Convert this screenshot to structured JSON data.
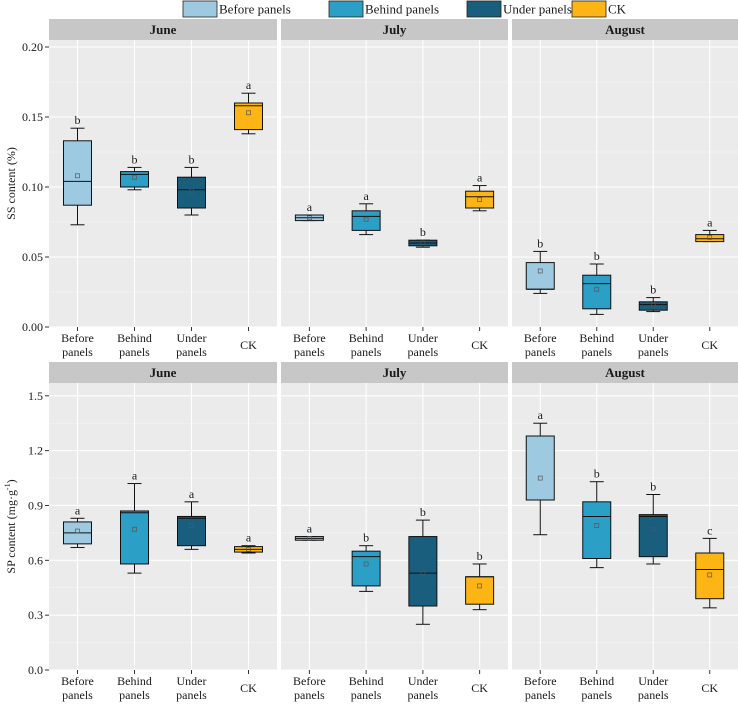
{
  "chart_data": {
    "type": "boxplot",
    "legend": {
      "placement": "top",
      "entries": [
        {
          "label": "Before panels",
          "color": "#9ecae1"
        },
        {
          "label": "Behind panels",
          "color": "#2b9fc5"
        },
        {
          "label": "Under panels",
          "color": "#1a5e7e"
        },
        {
          "label": "CK",
          "color": "#fdb515"
        }
      ]
    },
    "categories": [
      "Before\npanels",
      "Behind\npanels",
      "Under\npanels",
      "CK"
    ],
    "colors": [
      "#9ecae1",
      "#2b9fc5",
      "#1a5e7e",
      "#fdb515"
    ],
    "panel_bg": "#ebebeb",
    "strip_bg": "#c7c7c7",
    "rows": [
      {
        "ylabel": "SS content (%)",
        "ylim": [
          0,
          0.205
        ],
        "yticks": [
          0.0,
          0.05,
          0.1,
          0.15,
          0.2
        ],
        "ytick_labels": [
          "0.00",
          "0.05",
          "0.10",
          "0.15",
          "0.20"
        ],
        "panels": [
          {
            "title": "June",
            "boxes": [
              {
                "min": 0.073,
                "q1": 0.087,
                "median": 0.104,
                "q3": 0.133,
                "max": 0.142,
                "mean": 0.108,
                "label": "b"
              },
              {
                "min": 0.098,
                "q1": 0.1,
                "median": 0.109,
                "q3": 0.111,
                "max": 0.114,
                "mean": 0.107,
                "label": "b"
              },
              {
                "min": 0.08,
                "q1": 0.085,
                "median": 0.098,
                "q3": 0.107,
                "max": 0.114,
                "mean": 0.097,
                "label": "b"
              },
              {
                "min": 0.138,
                "q1": 0.141,
                "median": 0.158,
                "q3": 0.16,
                "max": 0.167,
                "mean": 0.153,
                "label": "a"
              }
            ]
          },
          {
            "title": "July",
            "boxes": [
              {
                "min": 0.076,
                "q1": 0.076,
                "median": 0.078,
                "q3": 0.08,
                "max": 0.08,
                "mean": 0.078,
                "label": "a"
              },
              {
                "min": 0.066,
                "q1": 0.069,
                "median": 0.079,
                "q3": 0.083,
                "max": 0.088,
                "mean": 0.077,
                "label": "a"
              },
              {
                "min": 0.057,
                "q1": 0.058,
                "median": 0.06,
                "q3": 0.062,
                "max": 0.062,
                "mean": 0.06,
                "label": "b"
              },
              {
                "min": 0.083,
                "q1": 0.085,
                "median": 0.093,
                "q3": 0.097,
                "max": 0.101,
                "mean": 0.091,
                "label": "a"
              }
            ]
          },
          {
            "title": "August",
            "boxes": [
              {
                "min": 0.024,
                "q1": 0.027,
                "median": 0.027,
                "q3": 0.046,
                "max": 0.054,
                "mean": 0.04,
                "label": "b"
              },
              {
                "min": 0.009,
                "q1": 0.013,
                "median": 0.031,
                "q3": 0.037,
                "max": 0.045,
                "mean": 0.027,
                "label": "b"
              },
              {
                "min": 0.011,
                "q1": 0.012,
                "median": 0.016,
                "q3": 0.018,
                "max": 0.021,
                "mean": 0.016,
                "label": "b"
              },
              {
                "min": 0.061,
                "q1": 0.061,
                "median": 0.063,
                "q3": 0.066,
                "max": 0.069,
                "mean": 0.064,
                "label": "a"
              }
            ]
          }
        ]
      },
      {
        "ylabel": "SP content (mg·g",
        "ylabel_sup": "-1",
        "ylabel_close": ")",
        "ylim": [
          0,
          1.57
        ],
        "yticks": [
          0.0,
          0.3,
          0.6,
          0.9,
          1.2,
          1.5
        ],
        "ytick_labels": [
          "0.0",
          "0.3",
          "0.6",
          "0.9",
          "1.2",
          "1.5"
        ],
        "panels": [
          {
            "title": "June",
            "boxes": [
              {
                "min": 0.67,
                "q1": 0.69,
                "median": 0.75,
                "q3": 0.81,
                "max": 0.83,
                "mean": 0.76,
                "label": "a"
              },
              {
                "min": 0.53,
                "q1": 0.58,
                "median": 0.86,
                "q3": 0.87,
                "max": 1.02,
                "mean": 0.77,
                "label": "a"
              },
              {
                "min": 0.66,
                "q1": 0.68,
                "median": 0.83,
                "q3": 0.84,
                "max": 0.92,
                "mean": 0.79,
                "label": "a"
              },
              {
                "min": 0.64,
                "q1": 0.645,
                "median": 0.66,
                "q3": 0.675,
                "max": 0.68,
                "mean": 0.66,
                "label": "a"
              }
            ]
          },
          {
            "title": "July",
            "boxes": [
              {
                "min": 0.71,
                "q1": 0.71,
                "median": 0.72,
                "q3": 0.73,
                "max": 0.73,
                "mean": 0.72,
                "label": "a"
              },
              {
                "min": 0.43,
                "q1": 0.46,
                "median": 0.62,
                "q3": 0.65,
                "max": 0.68,
                "mean": 0.58,
                "label": "b"
              },
              {
                "min": 0.25,
                "q1": 0.35,
                "median": 0.53,
                "q3": 0.73,
                "max": 0.82,
                "mean": 0.53,
                "label": "b"
              },
              {
                "min": 0.33,
                "q1": 0.36,
                "median": 0.51,
                "q3": 0.51,
                "max": 0.58,
                "mean": 0.46,
                "label": "b"
              }
            ]
          },
          {
            "title": "August",
            "boxes": [
              {
                "min": 0.74,
                "q1": 0.93,
                "median": 0.93,
                "q3": 1.28,
                "max": 1.35,
                "mean": 1.05,
                "label": "a"
              },
              {
                "min": 0.56,
                "q1": 0.61,
                "median": 0.84,
                "q3": 0.92,
                "max": 1.03,
                "mean": 0.79,
                "label": "b"
              },
              {
                "min": 0.58,
                "q1": 0.62,
                "median": 0.84,
                "q3": 0.85,
                "max": 0.96,
                "mean": 0.77,
                "label": "b"
              },
              {
                "min": 0.34,
                "q1": 0.39,
                "median": 0.55,
                "q3": 0.64,
                "max": 0.72,
                "mean": 0.52,
                "label": "c"
              }
            ]
          }
        ]
      }
    ]
  }
}
